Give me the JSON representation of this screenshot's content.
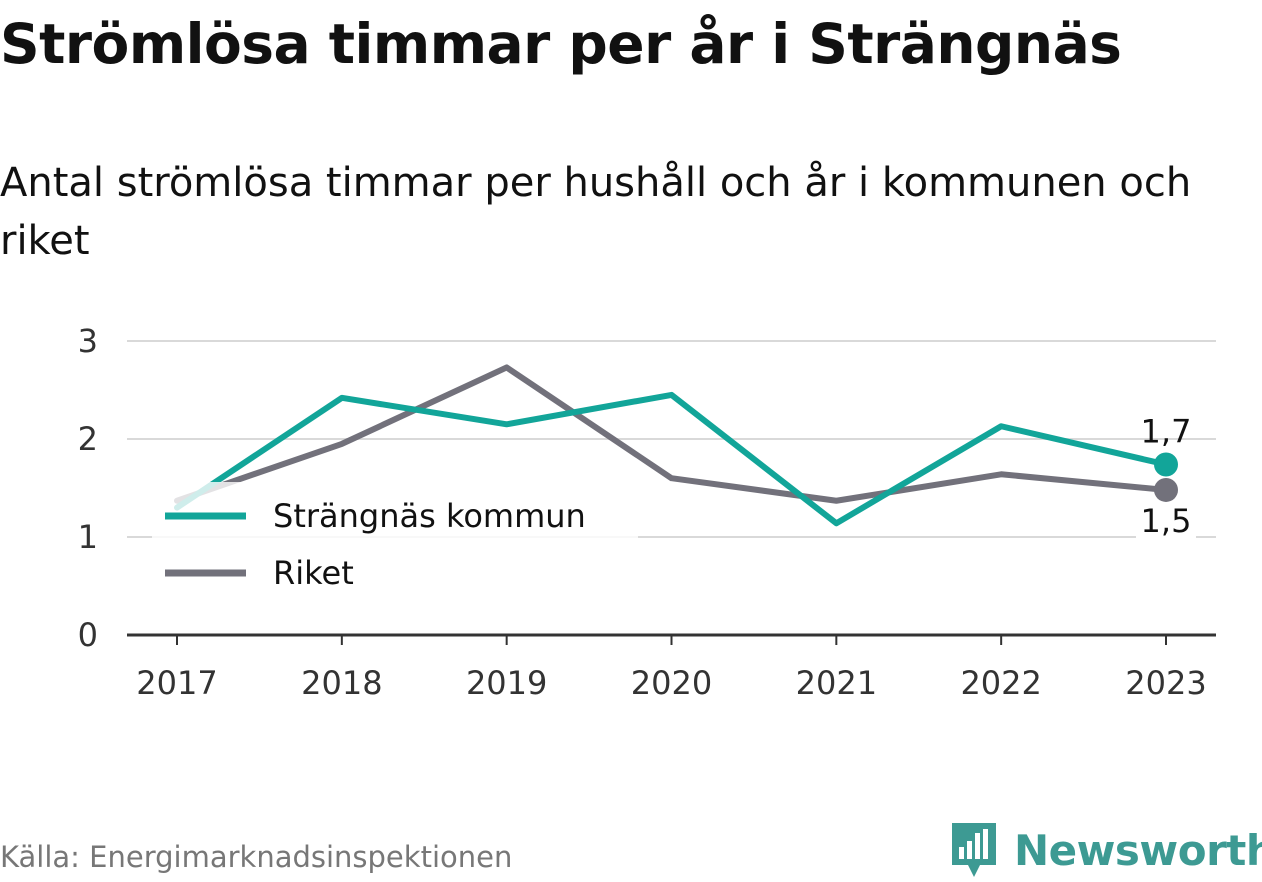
{
  "title": "Strömlösa timmar per år i Strängnäs",
  "subtitle": "Antal strömlösa timmar per hushåll och år i kommunen och riket",
  "source": "Källa: Energimarknadsinspektionen",
  "logo": {
    "text": "Newsworthy",
    "icon": "newsworthy-logo-icon",
    "color": "#3d9a93"
  },
  "chart_data": {
    "type": "line",
    "x": [
      "2017",
      "2018",
      "2019",
      "2020",
      "2021",
      "2022",
      "2023"
    ],
    "ylim": [
      0,
      3
    ],
    "yticks": [
      0,
      1,
      2,
      3
    ],
    "grid": true,
    "legend_position": "bottom-left",
    "series": [
      {
        "name": "Strängnäs kommun",
        "color": "#12a599",
        "values": [
          1.3,
          2.42,
          2.15,
          2.45,
          1.14,
          2.13,
          1.74
        ],
        "end_label": "1,7"
      },
      {
        "name": "Riket",
        "color": "#72717b",
        "values": [
          1.37,
          1.95,
          2.73,
          1.6,
          1.37,
          1.64,
          1.48
        ],
        "end_label": "1,5"
      }
    ]
  }
}
